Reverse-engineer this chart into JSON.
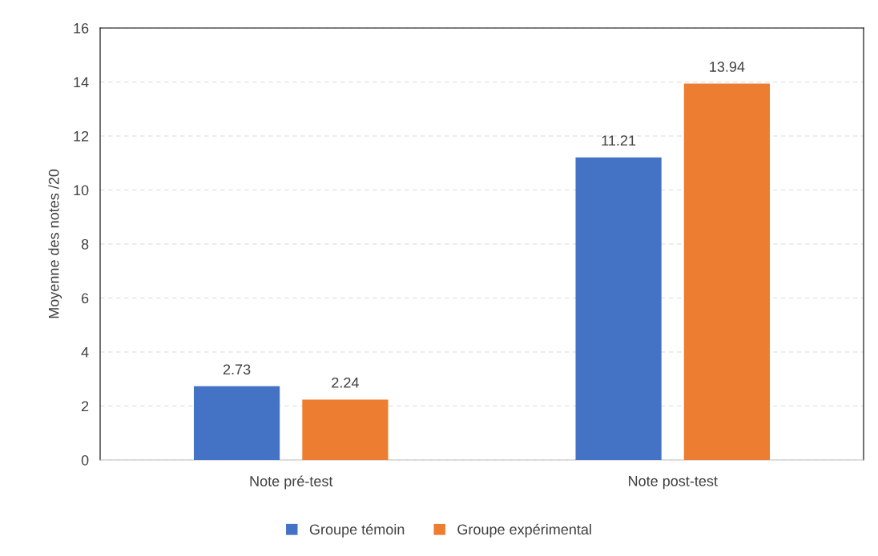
{
  "chart_data": {
    "type": "bar",
    "ylabel": "Moyenne des notes /20",
    "categories": [
      "Note pré-test",
      "Note post-test"
    ],
    "series": [
      {
        "name": "Groupe témoin",
        "color": "#4472c4",
        "values": [
          2.73,
          11.21
        ]
      },
      {
        "name": "Groupe expérimental",
        "color": "#ed7d31",
        "values": [
          2.24,
          13.94
        ]
      }
    ],
    "ylim": [
      0,
      16
    ],
    "yticks": [
      0,
      2,
      4,
      6,
      8,
      10,
      12,
      14,
      16
    ],
    "grid": "y",
    "legend": "bottom",
    "data_labels": true
  }
}
